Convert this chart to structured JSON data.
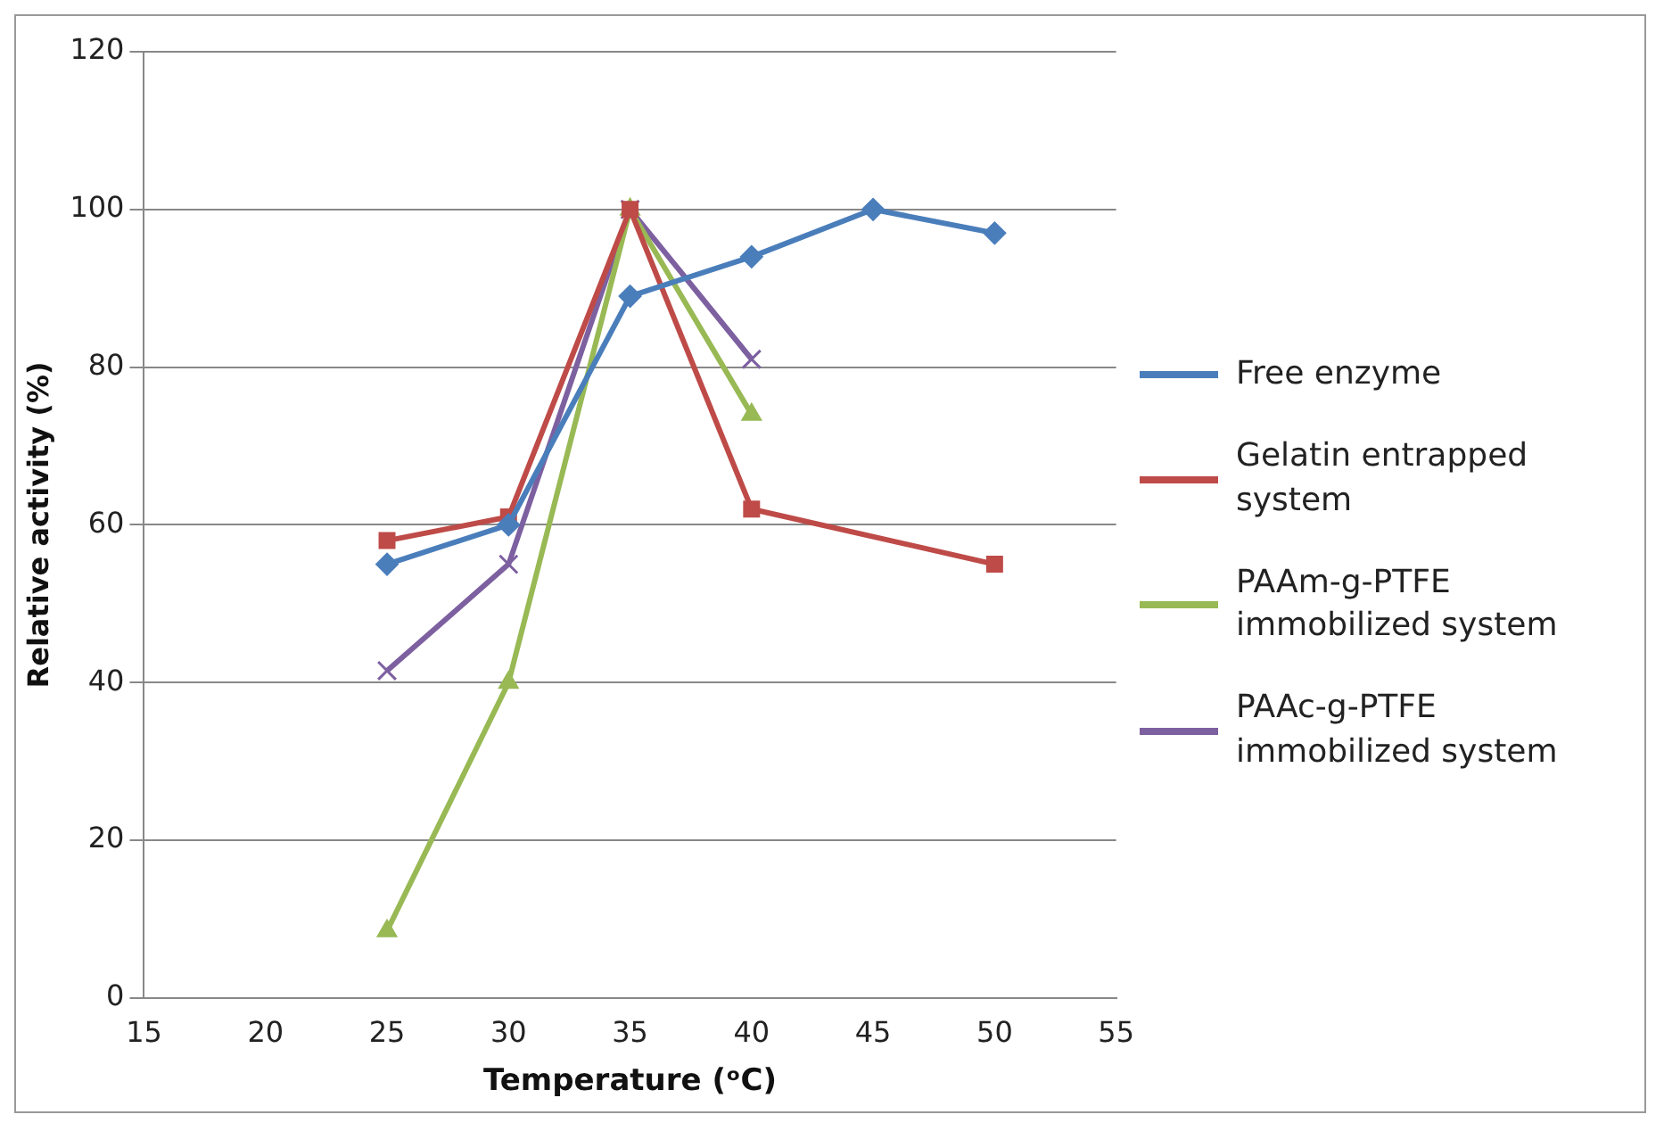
{
  "chart_data": {
    "type": "line",
    "xlabel": "Temperature (ᵒC)",
    "ylabel": "Relative activity (%)",
    "xlim": [
      15,
      55
    ],
    "xticks": [
      15,
      20,
      25,
      30,
      35,
      40,
      45,
      50,
      55
    ],
    "ylim": [
      0,
      120
    ],
    "yticks": [
      0,
      20,
      40,
      60,
      80,
      100,
      120
    ],
    "grid": "y",
    "legend": "right",
    "series": [
      {
        "name": "Free enzyme",
        "color": "#4a7ebb",
        "marker": "diamond",
        "x": [
          25,
          30,
          35,
          40,
          45,
          50
        ],
        "values": [
          55,
          60,
          89,
          94,
          100,
          97
        ]
      },
      {
        "name": "Gelatin entrapped system",
        "color": "#be4b48",
        "marker": "square",
        "x": [
          25,
          30,
          35,
          40,
          50
        ],
        "values": [
          58,
          61,
          100,
          62,
          55
        ]
      },
      {
        "name": "PAAm-g-PTFE immobilized system",
        "color": "#98b954",
        "marker": "triangle",
        "x": [
          25,
          30,
          35,
          40
        ],
        "values": [
          8.5,
          40,
          100,
          74
        ]
      },
      {
        "name": "PAAc-g-PTFE immobilized system",
        "color": "#7d60a0",
        "marker": "cross",
        "x": [
          25,
          30,
          35,
          40
        ],
        "values": [
          41.5,
          55,
          100,
          81
        ]
      }
    ]
  }
}
